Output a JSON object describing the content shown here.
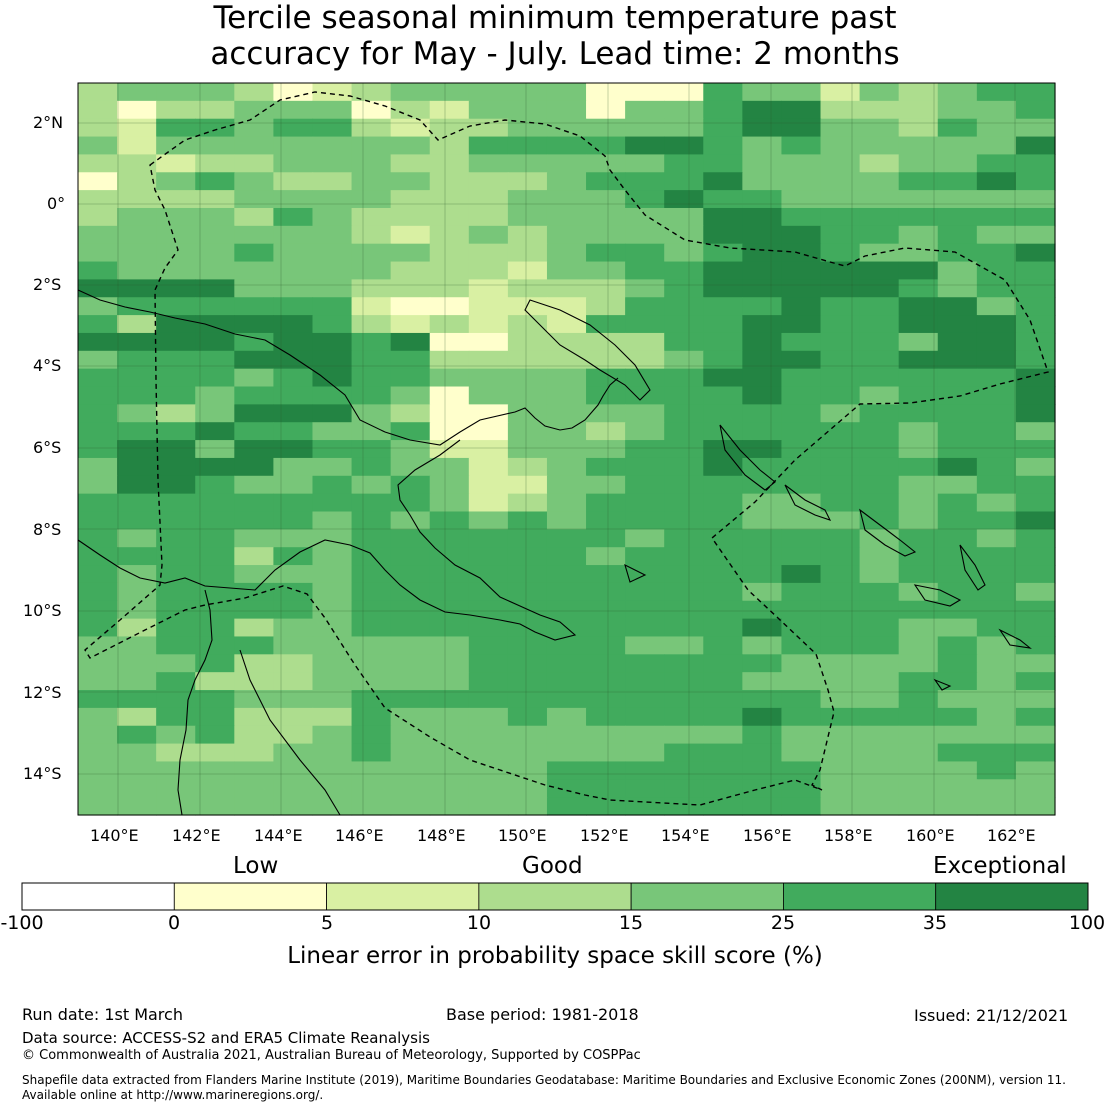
{
  "title": {
    "line1": "Tercile seasonal minimum temperature past",
    "line2": "accuracy for May - July. Lead time: 2 months"
  },
  "map": {
    "lon_labels": [
      "140°E",
      "142°E",
      "144°E",
      "146°E",
      "148°E",
      "150°E",
      "152°E",
      "154°E",
      "156°E",
      "158°E",
      "160°E",
      "162°E"
    ],
    "lat_labels": [
      "2°N",
      "0°",
      "2°S",
      "4°S",
      "6°S",
      "8°S",
      "10°S",
      "12°S",
      "14°S"
    ]
  },
  "colorbar": {
    "category_low": "Low",
    "category_good": "Good",
    "category_exceptional": "Exceptional",
    "ticks": [
      "-100",
      "0",
      "5",
      "10",
      "15",
      "25",
      "35",
      "100"
    ],
    "colors": [
      "#ffffff",
      "#ffffcc",
      "#d9f0a3",
      "#addd8e",
      "#78c679",
      "#41ab5d",
      "#238443"
    ],
    "label": "Linear error in probability space skill score (%)"
  },
  "footer": {
    "run_date": "Run date: 1st March",
    "base_period": "Base period: 1981-2018",
    "issued": "Issued: 21/12/2021",
    "data_source": "Data source: ACCESS-S2 and ERA5 Climate Reanalysis",
    "copyright": "© Commonwealth of Australia 2021, Australian Bureau of Meteorology, Supported by COSPPac",
    "shapefile_line1": "Shapefile data extracted from Flanders Marine Institute (2019), Maritime Boundaries Geodatabase: Maritime Boundaries and Exclusive Economic Zones (200NM), version 11.",
    "shapefile_line2": "Available online at http://www.marineregions.org/."
  },
  "grid_rows": [
    "3444312344444111544243455",
    "3133444132444144566333445",
    "3255455323344444566443544",
    "4244444443555566545444446",
    "3323344433444445544434455",
    "1345433443334555644445565",
    "3333444433344456554444444",
    "3444354333344444665555555",
    "4444444323434444666554544",
    "4444544443334554566544556",
    "5444444433324455666666455",
    "6666444333233345666665455",
    "4555555211222355556556645",
    "5366665323232555566556665",
    "6666566561133335565554665",
    "4555666553333334566556665",
    "5555456554444555665555556",
    "5554555541444555565545556",
    "5434666431144445555455556",
    "5556554451144345555554554",
    "5664665542244455665554555",
    "4666644544234555655555654",
    "4665445454224455555554455",
    "5555555554234555544554545",
    "5555554545454555544454556",
    "5455444555555545555545545",
    "5555354555555455555545555",
    "5455444555555555556545555",
    "5455554555555555545554554",
    "5455554555555555555555555",
    "5355344555555555565554455",
    "4455544444555544545554545",
    "4445334444555555554444544",
    "4453334444555555544445545",
    "5555444555555555555445444",
    "4355333544454555565555545",
    "4545334544444444454444444",
    "4433344544444445554444555",
    "4444444444445555555444454",
    "4444444444445555555444444",
    "4444444444445555555444444"
  ]
}
